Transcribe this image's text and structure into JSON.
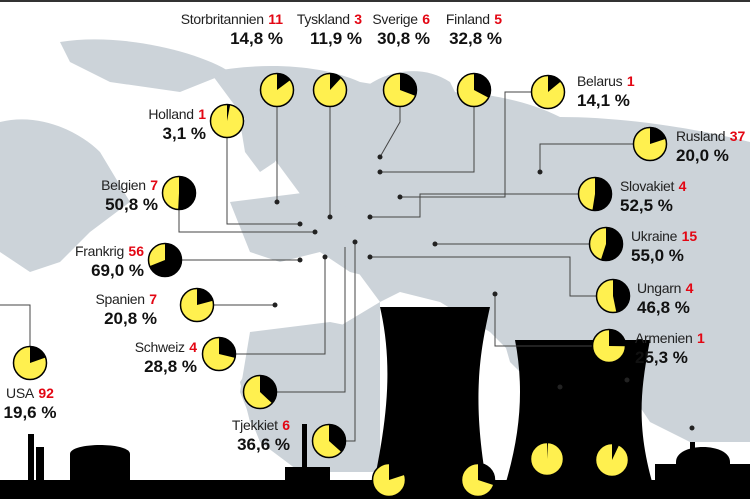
{
  "colors": {
    "nuclear": "#000000",
    "other": "#fff04f",
    "land": "#ccd3d9",
    "count": "#e30613"
  },
  "chart_data": {
    "type": "pie",
    "description_of_values": "share of electricity from nuclear power (%) and number of reactors per country",
    "countries": [
      {
        "name": "Storbritannien",
        "reactors": "11",
        "pct_label": "14,8 %",
        "value": 14.8
      },
      {
        "name": "Tyskland",
        "reactors": "3",
        "pct_label": "11,9 %",
        "value": 11.9
      },
      {
        "name": "Sverige",
        "reactors": "6",
        "pct_label": "30,8 %",
        "value": 30.8
      },
      {
        "name": "Finland",
        "reactors": "5",
        "pct_label": "32,8 %",
        "value": 32.8
      },
      {
        "name": "Belarus",
        "reactors": "1",
        "pct_label": "14,1 %",
        "value": 14.1
      },
      {
        "name": "Holland",
        "reactors": "1",
        "pct_label": "3,1 %",
        "value": 3.1
      },
      {
        "name": "Rusland",
        "reactors": "37",
        "pct_label": "20,0 %",
        "value": 20.0
      },
      {
        "name": "Belgien",
        "reactors": "7",
        "pct_label": "50,8 %",
        "value": 50.8
      },
      {
        "name": "Slovakiet",
        "reactors": "4",
        "pct_label": "52,5 %",
        "value": 52.5
      },
      {
        "name": "Frankrig",
        "reactors": "56",
        "pct_label": "69,0 %",
        "value": 69.0
      },
      {
        "name": "Ukraine",
        "reactors": "15",
        "pct_label": "55,0 %",
        "value": 55.0
      },
      {
        "name": "Spanien",
        "reactors": "7",
        "pct_label": "20,8 %",
        "value": 20.8
      },
      {
        "name": "Ungarn",
        "reactors": "4",
        "pct_label": "46,8 %",
        "value": 46.8
      },
      {
        "name": "Schweiz",
        "reactors": "4",
        "pct_label": "28,8 %",
        "value": 28.8
      },
      {
        "name": "Armenien",
        "reactors": "1",
        "pct_label": "25,3 %",
        "value": 25.3
      },
      {
        "name": "USA",
        "reactors": "92",
        "pct_label": "19,6 %",
        "value": 19.6
      },
      {
        "name": "Tjekkiet",
        "reactors": "6",
        "pct_label": "36,6 %",
        "value": 36.6
      }
    ],
    "unlabeled_pies": [
      37,
      20,
      30,
      1,
      7
    ]
  }
}
